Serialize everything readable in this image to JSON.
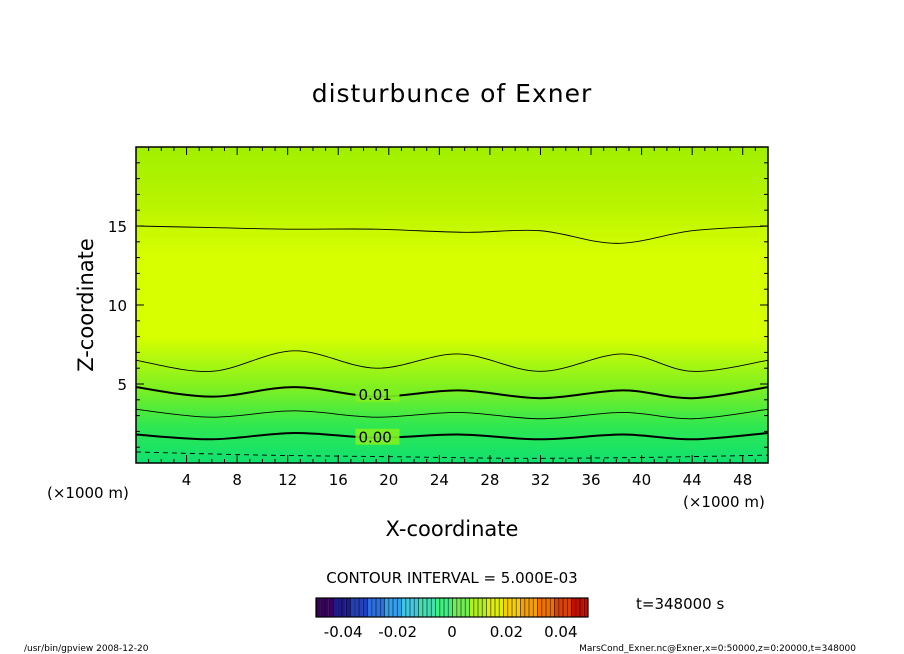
{
  "chart_data": {
    "type": "contour",
    "title": "disturbunce of Exner",
    "xlabel": "X-coordinate",
    "ylabel": "Z-coordinate",
    "x_unit_left": "(×1000 m)",
    "x_unit_right": "(×1000 m)",
    "xlim": [
      0,
      50
    ],
    "ylim": [
      0,
      20
    ],
    "x_ticks": [
      4,
      8,
      12,
      16,
      20,
      24,
      28,
      32,
      36,
      40,
      44,
      48
    ],
    "y_ticks": [
      5,
      10,
      15
    ],
    "contour_interval_text": "CONTOUR INTERVAL = 5.000E-03",
    "contour_labels": [
      {
        "text": "0.01",
        "x": 17.6,
        "z": 4.3
      },
      {
        "text": "0.00",
        "x": 17.6,
        "z": 1.6
      }
    ],
    "contour_lines": [
      {
        "style": "thin",
        "points": [
          [
            0,
            15.0
          ],
          [
            6,
            14.9
          ],
          [
            12,
            14.8
          ],
          [
            19,
            14.8
          ],
          [
            26,
            14.6
          ],
          [
            32,
            14.7
          ],
          [
            38,
            13.9
          ],
          [
            44,
            14.7
          ],
          [
            50,
            15.0
          ]
        ]
      },
      {
        "style": "thin",
        "points": [
          [
            0,
            6.5
          ],
          [
            6,
            5.8
          ],
          [
            12.5,
            7.1
          ],
          [
            19,
            6.0
          ],
          [
            25.5,
            6.9
          ],
          [
            32,
            5.8
          ],
          [
            38.5,
            6.9
          ],
          [
            44,
            5.8
          ],
          [
            50,
            6.5
          ]
        ]
      },
      {
        "style": "thick",
        "points": [
          [
            0,
            4.8
          ],
          [
            6,
            4.2
          ],
          [
            12.5,
            4.8
          ],
          [
            19,
            4.2
          ],
          [
            25.5,
            4.6
          ],
          [
            32,
            4.1
          ],
          [
            38.5,
            4.6
          ],
          [
            44,
            4.1
          ],
          [
            50,
            4.8
          ]
        ]
      },
      {
        "style": "thin",
        "points": [
          [
            0,
            3.4
          ],
          [
            6,
            2.9
          ],
          [
            12.5,
            3.3
          ],
          [
            19,
            2.9
          ],
          [
            25.5,
            3.2
          ],
          [
            32,
            2.8
          ],
          [
            38.5,
            3.2
          ],
          [
            44,
            2.8
          ],
          [
            50,
            3.4
          ]
        ]
      },
      {
        "style": "thick",
        "points": [
          [
            0,
            1.8
          ],
          [
            6,
            1.5
          ],
          [
            12.5,
            1.9
          ],
          [
            19,
            1.6
          ],
          [
            25.5,
            1.8
          ],
          [
            32,
            1.5
          ],
          [
            38.5,
            1.8
          ],
          [
            44,
            1.5
          ],
          [
            50,
            1.9
          ]
        ]
      },
      {
        "style": "dashed",
        "points": [
          [
            0,
            0.7
          ],
          [
            10,
            0.5
          ],
          [
            20,
            0.4
          ],
          [
            30,
            0.3
          ],
          [
            40,
            0.35
          ],
          [
            50,
            0.5
          ]
        ]
      }
    ],
    "colorbar": {
      "ticks": [
        "-0.04",
        "-0.02",
        "0",
        "0.02",
        "0.04"
      ],
      "colors": [
        "#3a0060",
        "#1e1a8c",
        "#2040c0",
        "#2c70e0",
        "#30a0f0",
        "#40c8e0",
        "#40e0b0",
        "#40f080",
        "#70f050",
        "#b0f020",
        "#e0f000",
        "#f8d000",
        "#f8a000",
        "#f07000",
        "#e04000",
        "#c01000"
      ]
    },
    "fill_colors": {
      "bottom": "#10e070",
      "low": "#30e850",
      "mid": "#80f020",
      "core": "#d8ff00",
      "upper": "#b8f400",
      "top": "#a0f000"
    },
    "time_text": "t=348000 s",
    "footer_left": "/usr/bin/gpview  2008-12-20",
    "footer_right": "MarsCond_Exner.nc@Exner,x=0:50000,z=0:20000,t=348000"
  }
}
